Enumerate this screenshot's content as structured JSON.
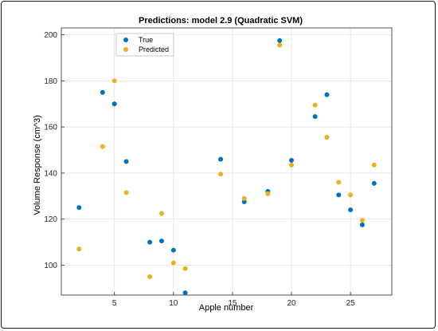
{
  "chart_data": {
    "type": "scatter",
    "title": "Predictions: model 2.9 (Quadratic SVM)",
    "xlabel": "Apple number",
    "ylabel": "Volume Response (cm^3)",
    "xlim": [
      0.5,
      28.5
    ],
    "ylim": [
      87,
      203
    ],
    "xticks": [
      5,
      10,
      15,
      20,
      25
    ],
    "yticks": [
      100,
      120,
      140,
      160,
      180,
      200
    ],
    "grid": true,
    "legend_position": "top-left",
    "series": [
      {
        "name": "True",
        "color": "#0072BD",
        "points": [
          {
            "x": 2,
            "y": 125
          },
          {
            "x": 4,
            "y": 175
          },
          {
            "x": 5,
            "y": 170
          },
          {
            "x": 6,
            "y": 145
          },
          {
            "x": 8,
            "y": 110
          },
          {
            "x": 9,
            "y": 110.5
          },
          {
            "x": 10,
            "y": 106.5
          },
          {
            "x": 11,
            "y": 88
          },
          {
            "x": 14,
            "y": 146
          },
          {
            "x": 16,
            "y": 127.5
          },
          {
            "x": 18,
            "y": 132
          },
          {
            "x": 19,
            "y": 197.5
          },
          {
            "x": 20,
            "y": 145.5
          },
          {
            "x": 22,
            "y": 164.5
          },
          {
            "x": 23,
            "y": 174
          },
          {
            "x": 24,
            "y": 130.5
          },
          {
            "x": 25,
            "y": 124
          },
          {
            "x": 26,
            "y": 117.5
          },
          {
            "x": 27,
            "y": 135.5
          }
        ]
      },
      {
        "name": "Predicted",
        "color": "#EDB120",
        "points": [
          {
            "x": 2,
            "y": 107
          },
          {
            "x": 4,
            "y": 151.5
          },
          {
            "x": 5,
            "y": 180
          },
          {
            "x": 6,
            "y": 131.5
          },
          {
            "x": 8,
            "y": 95
          },
          {
            "x": 9,
            "y": 122.5
          },
          {
            "x": 10,
            "y": 101
          },
          {
            "x": 11,
            "y": 98.5
          },
          {
            "x": 14,
            "y": 139.5
          },
          {
            "x": 16,
            "y": 129
          },
          {
            "x": 18,
            "y": 131
          },
          {
            "x": 19,
            "y": 195.5
          },
          {
            "x": 20,
            "y": 143.5
          },
          {
            "x": 22,
            "y": 169.5
          },
          {
            "x": 23,
            "y": 155.5
          },
          {
            "x": 24,
            "y": 136
          },
          {
            "x": 25,
            "y": 130.5
          },
          {
            "x": 26,
            "y": 119.5
          },
          {
            "x": 27,
            "y": 143.5
          }
        ]
      }
    ]
  }
}
